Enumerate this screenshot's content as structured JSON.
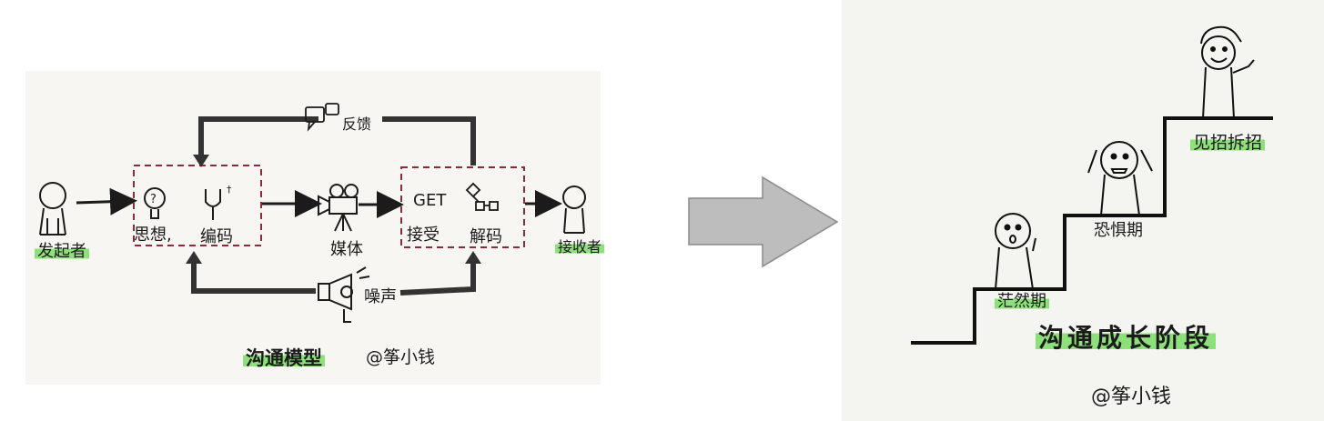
{
  "left_diagram": {
    "sender": "发起者",
    "thought": "思想,",
    "encode": "编码",
    "media": "媒体",
    "get_word": "GET",
    "receive": "接受",
    "decode": "解码",
    "receiver": "接收者",
    "feedback": "反馈",
    "noise": "噪声",
    "title": "沟通模型",
    "author": "@筝小钱"
  },
  "right_diagram": {
    "stage1": "茫然期",
    "stage2": "恐惧期",
    "stage3": "见招拆招",
    "title": "沟通成长阶段",
    "author": "@筝小钱"
  },
  "colors": {
    "highlight": "#8ee07a",
    "ink": "#1b1b1b",
    "dashed_box": "#8a2b3a",
    "big_arrow": "#bdbdbd"
  }
}
